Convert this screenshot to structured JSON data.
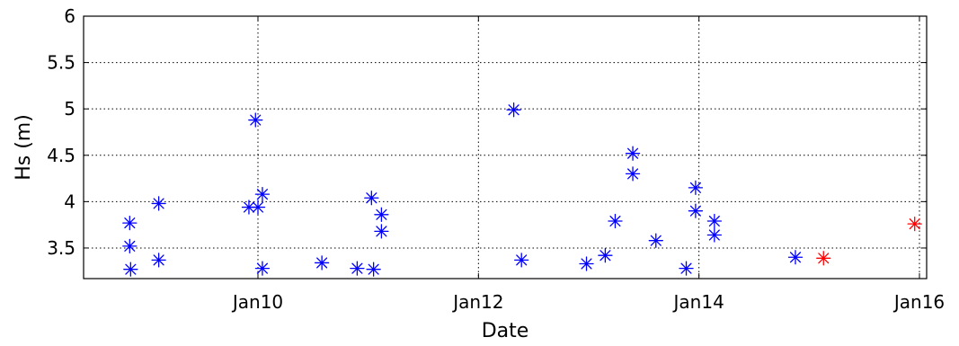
{
  "chart_data": {
    "type": "scatter",
    "xlabel": "Date",
    "ylabel": "Hs (m)",
    "x_ticks": [
      "Jan10",
      "Jan12",
      "Jan14",
      "Jan16"
    ],
    "y_ticks": [
      "3.5",
      "4",
      "4.5",
      "5",
      "5.5",
      "6"
    ],
    "xlim": [
      "2015-01-08 16:24",
      "2016-01-16 03:36"
    ],
    "ylim": [
      3.17,
      6.0
    ],
    "grid": true,
    "marker": "asterisk",
    "series": [
      {
        "color": "#0000ff",
        "points": [
          [
            "Jan 08 20:05",
            3.77
          ],
          [
            "Jan 08 20:05",
            3.52
          ],
          [
            "Jan 08 20:17",
            3.27
          ],
          [
            "Jan 09 02:24",
            3.98
          ],
          [
            "Jan 09 02:24",
            3.37
          ],
          [
            "Jan 09 22:02",
            3.94
          ],
          [
            "Jan 09 23:28",
            4.88
          ],
          [
            "Jan 10 00:00",
            3.94
          ],
          [
            "Jan 10 00:58",
            4.08
          ],
          [
            "Jan 10 00:58",
            3.28
          ],
          [
            "Jan 10 13:55",
            3.34
          ],
          [
            "Jan 10 21:36",
            3.28
          ],
          [
            "Jan 11 00:43",
            4.04
          ],
          [
            "Jan 11 01:10",
            3.27
          ],
          [
            "Jan 11 02:53",
            3.86
          ],
          [
            "Jan 11 02:53",
            3.68
          ],
          [
            "Jan 12 07:41",
            4.99
          ],
          [
            "Jan 12 09:22",
            3.37
          ],
          [
            "Jan 12 23:31",
            3.33
          ],
          [
            "Jan 13 03:36",
            3.42
          ],
          [
            "Jan 13 05:46",
            3.79
          ],
          [
            "Jan 13 09:36",
            4.52
          ],
          [
            "Jan 13 09:36",
            4.3
          ],
          [
            "Jan 13 14:38",
            3.58
          ],
          [
            "Jan 13 21:14",
            3.28
          ],
          [
            "Jan 13 23:16",
            4.15
          ],
          [
            "Jan 13 23:16",
            3.9
          ],
          [
            "Jan 14 03:22",
            3.79
          ],
          [
            "Jan 14 03:22",
            3.64
          ],
          [
            "Jan 14 21:00",
            3.4
          ]
        ]
      },
      {
        "color": "#ff0000",
        "points": [
          [
            "Jan 15 03:07",
            3.39
          ],
          [
            "Jan 15 22:58",
            3.76
          ]
        ]
      }
    ]
  }
}
